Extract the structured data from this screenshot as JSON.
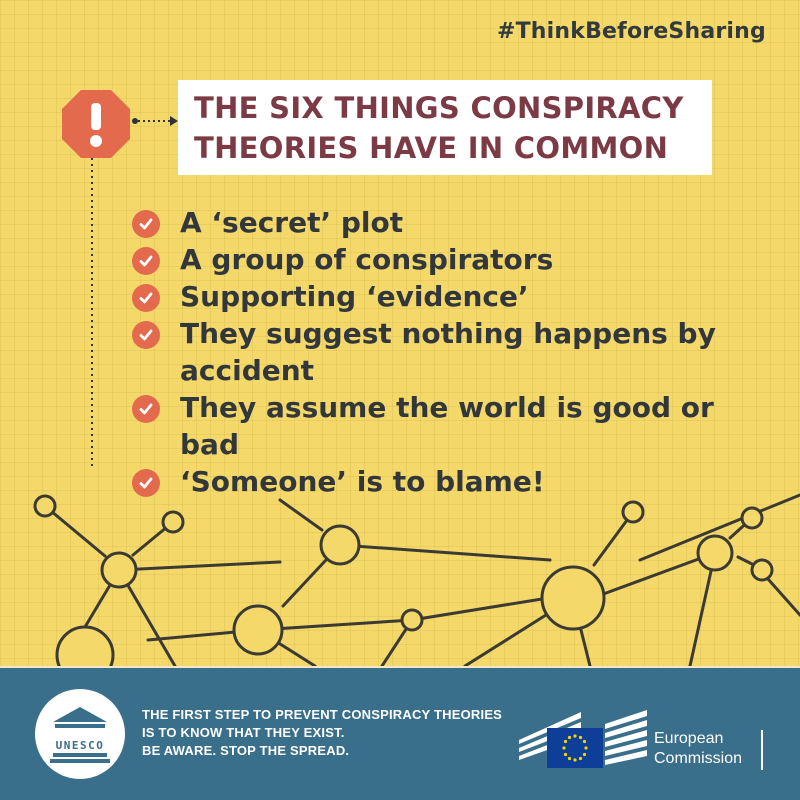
{
  "hashtag": "#ThinkBeforeSharing",
  "title": {
    "line1": "THE SIX THINGS CONSPIRACY",
    "line2": "THEORIES HAVE IN COMMON"
  },
  "items": [
    "A ‘secret’ plot",
    "A group of conspirators",
    "Supporting ‘evidence’",
    "They suggest nothing happens by accident",
    "They assume the world is good or bad",
    "‘Someone’ is to blame!"
  ],
  "footer": {
    "line1": "THE FIRST STEP TO PREVENT CONSPIRACY THEORIES",
    "line2": "IS TO KNOW THAT THEY EXIST.",
    "line3": "BE AWARE. STOP THE SPREAD."
  },
  "unesco_logo_text": "UNESCO",
  "ec": {
    "word1": "European",
    "word2": "Commission"
  },
  "colors": {
    "background": "#f4d96a",
    "title_text": "#7b3a44",
    "check": "#e46a4d",
    "warning_sign": "#e46a4d",
    "footer": "#3a6f8b",
    "eu_flag": "#0d3f99",
    "eu_stars": "#f5d400"
  },
  "icons": [
    "warning-octagon-icon",
    "check-circle-icon",
    "unesco-temple-icon",
    "eu-flag-icon"
  ]
}
